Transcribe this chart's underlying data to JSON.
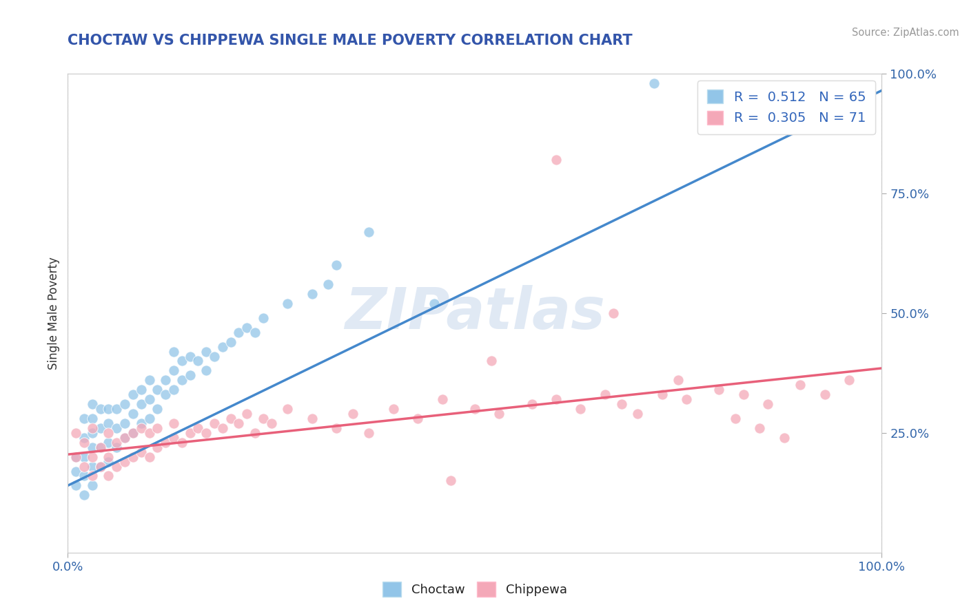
{
  "title": "CHOCTAW VS CHIPPEWA SINGLE MALE POVERTY CORRELATION CHART",
  "source_text": "Source: ZipAtlas.com",
  "ylabel": "Single Male Poverty",
  "xlim": [
    0,
    1
  ],
  "ylim": [
    0,
    1
  ],
  "xtick_positions": [
    0,
    1
  ],
  "xtick_labels": [
    "0.0%",
    "100.0%"
  ],
  "ytick_positions": [
    0.25,
    0.5,
    0.75,
    1.0
  ],
  "ytick_labels": [
    "25.0%",
    "50.0%",
    "75.0%",
    "100.0%"
  ],
  "choctaw_R": 0.512,
  "choctaw_N": 65,
  "chippewa_R": 0.305,
  "chippewa_N": 71,
  "choctaw_color": "#92C5E8",
  "chippewa_color": "#F4A8B8",
  "choctaw_line_color": "#4488CC",
  "chippewa_line_color": "#E8607A",
  "choctaw_line": {
    "x0": 0.0,
    "y0": 0.14,
    "x1": 1.0,
    "y1": 0.965
  },
  "chippewa_line": {
    "x0": 0.0,
    "y0": 0.205,
    "x1": 1.0,
    "y1": 0.385
  },
  "background_color": "#FFFFFF",
  "grid_color": "#CCCCCC",
  "watermark": "ZIPatlas",
  "legend_label_choctaw": "R =  0.512   N = 65",
  "legend_label_chippewa": "R =  0.305   N = 71",
  "choctaw_x": [
    0.01,
    0.01,
    0.01,
    0.02,
    0.02,
    0.02,
    0.02,
    0.02,
    0.03,
    0.03,
    0.03,
    0.03,
    0.03,
    0.03,
    0.04,
    0.04,
    0.04,
    0.04,
    0.05,
    0.05,
    0.05,
    0.05,
    0.06,
    0.06,
    0.06,
    0.07,
    0.07,
    0.07,
    0.08,
    0.08,
    0.08,
    0.09,
    0.09,
    0.09,
    0.1,
    0.1,
    0.1,
    0.11,
    0.11,
    0.12,
    0.12,
    0.13,
    0.13,
    0.13,
    0.14,
    0.14,
    0.15,
    0.15,
    0.16,
    0.17,
    0.17,
    0.18,
    0.19,
    0.2,
    0.21,
    0.22,
    0.23,
    0.24,
    0.27,
    0.3,
    0.32,
    0.33,
    0.37,
    0.45,
    0.72
  ],
  "choctaw_y": [
    0.14,
    0.17,
    0.2,
    0.12,
    0.16,
    0.2,
    0.24,
    0.28,
    0.14,
    0.18,
    0.22,
    0.25,
    0.28,
    0.31,
    0.18,
    0.22,
    0.26,
    0.3,
    0.19,
    0.23,
    0.27,
    0.3,
    0.22,
    0.26,
    0.3,
    0.24,
    0.27,
    0.31,
    0.25,
    0.29,
    0.33,
    0.27,
    0.31,
    0.34,
    0.28,
    0.32,
    0.36,
    0.3,
    0.34,
    0.33,
    0.36,
    0.34,
    0.38,
    0.42,
    0.36,
    0.4,
    0.37,
    0.41,
    0.4,
    0.38,
    0.42,
    0.41,
    0.43,
    0.44,
    0.46,
    0.47,
    0.46,
    0.49,
    0.52,
    0.54,
    0.56,
    0.6,
    0.67,
    0.52,
    0.98
  ],
  "chippewa_x": [
    0.01,
    0.01,
    0.02,
    0.02,
    0.03,
    0.03,
    0.03,
    0.04,
    0.04,
    0.05,
    0.05,
    0.05,
    0.06,
    0.06,
    0.07,
    0.07,
    0.08,
    0.08,
    0.09,
    0.09,
    0.1,
    0.1,
    0.11,
    0.11,
    0.12,
    0.13,
    0.13,
    0.14,
    0.15,
    0.16,
    0.17,
    0.18,
    0.19,
    0.2,
    0.21,
    0.22,
    0.23,
    0.24,
    0.25,
    0.27,
    0.3,
    0.33,
    0.35,
    0.37,
    0.4,
    0.43,
    0.46,
    0.5,
    0.53,
    0.57,
    0.6,
    0.63,
    0.66,
    0.68,
    0.7,
    0.73,
    0.76,
    0.8,
    0.83,
    0.86,
    0.9,
    0.93,
    0.96,
    0.6,
    0.67,
    0.75,
    0.82,
    0.85,
    0.88,
    0.52,
    0.47
  ],
  "chippewa_y": [
    0.2,
    0.25,
    0.18,
    0.23,
    0.16,
    0.2,
    0.26,
    0.18,
    0.22,
    0.16,
    0.2,
    0.25,
    0.18,
    0.23,
    0.19,
    0.24,
    0.2,
    0.25,
    0.21,
    0.26,
    0.2,
    0.25,
    0.22,
    0.26,
    0.23,
    0.24,
    0.27,
    0.23,
    0.25,
    0.26,
    0.25,
    0.27,
    0.26,
    0.28,
    0.27,
    0.29,
    0.25,
    0.28,
    0.27,
    0.3,
    0.28,
    0.26,
    0.29,
    0.25,
    0.3,
    0.28,
    0.32,
    0.3,
    0.29,
    0.31,
    0.32,
    0.3,
    0.33,
    0.31,
    0.29,
    0.33,
    0.32,
    0.34,
    0.33,
    0.31,
    0.35,
    0.33,
    0.36,
    0.82,
    0.5,
    0.36,
    0.28,
    0.26,
    0.24,
    0.4,
    0.15
  ]
}
